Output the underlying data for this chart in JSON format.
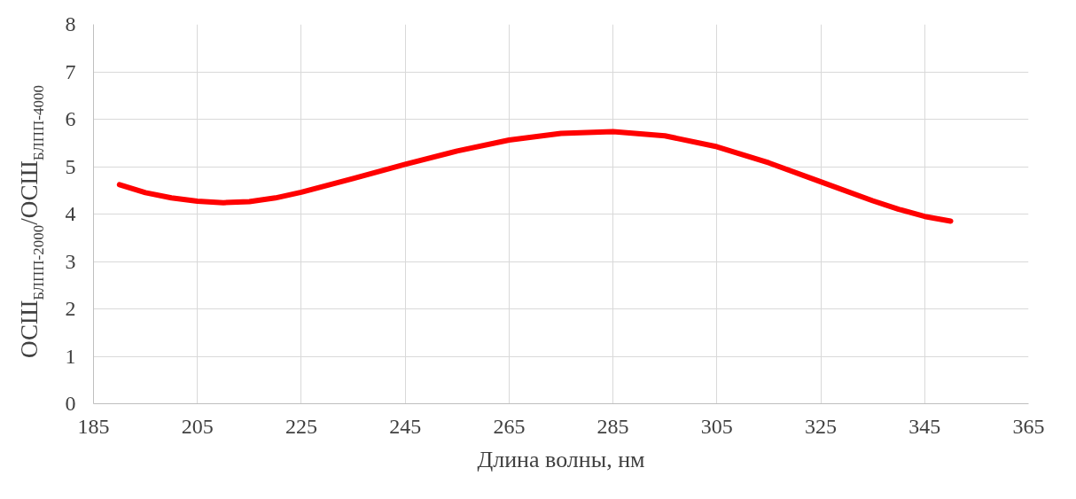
{
  "chart_data": {
    "type": "line",
    "xlabel": "Длина волны, нм",
    "ylabel": "ОСШ$_{БЛПП-2000}$/ОСШ$_{БЛПП-4000}$",
    "x": [
      190,
      195,
      200,
      205,
      210,
      215,
      220,
      225,
      235,
      245,
      255,
      265,
      275,
      285,
      295,
      305,
      315,
      325,
      335,
      340,
      345,
      350
    ],
    "series": [
      {
        "color": "#ff0000",
        "values": [
          4.62,
          4.45,
          4.34,
          4.27,
          4.24,
          4.26,
          4.34,
          4.46,
          4.75,
          5.05,
          5.33,
          5.56,
          5.7,
          5.74,
          5.65,
          5.42,
          5.08,
          4.68,
          4.28,
          4.1,
          3.95,
          3.85
        ]
      }
    ],
    "xlim": [
      185,
      365
    ],
    "xticks": [
      185,
      205,
      225,
      245,
      265,
      285,
      305,
      325,
      345,
      365
    ],
    "ylim": [
      0,
      8
    ],
    "yticks": [
      0,
      1,
      2,
      3,
      4,
      5,
      6,
      7,
      8
    ],
    "grid": true,
    "marker": "none",
    "line_style": "solid"
  }
}
